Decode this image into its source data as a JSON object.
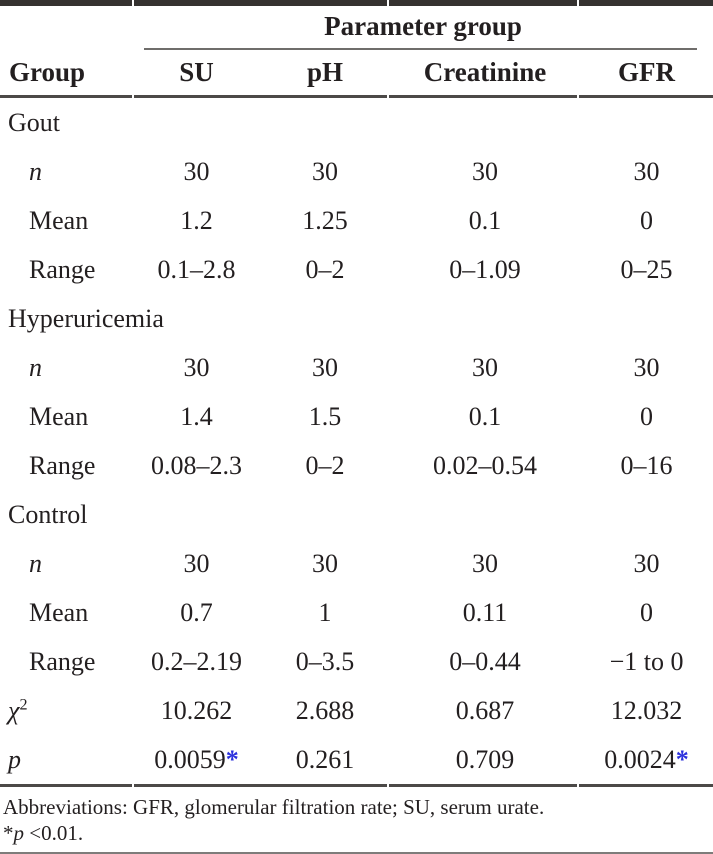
{
  "page": {
    "background": "#ffffff",
    "text_color": "#231f20",
    "accent_blue": "#2b30dd"
  },
  "table": {
    "spanner": "Parameter group",
    "columns": [
      "Group",
      "SU",
      "pH",
      "Creatinine",
      "GFR"
    ],
    "sections": [
      {
        "group": "Gout",
        "rows": [
          {
            "label": "n",
            "italic": true,
            "indent": true,
            "values": [
              "30",
              "30",
              "30",
              "30"
            ]
          },
          {
            "label": "Mean",
            "italic": false,
            "indent": true,
            "values": [
              "1.2",
              "1.25",
              "0.1",
              "0"
            ]
          },
          {
            "label": "Range",
            "italic": false,
            "indent": true,
            "values": [
              "0.1–2.8",
              "0–2",
              "0–1.09",
              "0–25"
            ]
          }
        ]
      },
      {
        "group": "Hyperuricemia",
        "rows": [
          {
            "label": "n",
            "italic": true,
            "indent": true,
            "values": [
              "30",
              "30",
              "30",
              "30"
            ]
          },
          {
            "label": "Mean",
            "italic": false,
            "indent": true,
            "values": [
              "1.4",
              "1.5",
              "0.1",
              "0"
            ]
          },
          {
            "label": "Range",
            "italic": false,
            "indent": true,
            "values": [
              "0.08–2.3",
              "0–2",
              "0.02–0.54",
              "0–16"
            ]
          }
        ]
      },
      {
        "group": "Control",
        "rows": [
          {
            "label": "n",
            "italic": true,
            "indent": true,
            "values": [
              "30",
              "30",
              "30",
              "30"
            ]
          },
          {
            "label": "Mean",
            "italic": false,
            "indent": true,
            "values": [
              "0.7",
              "1",
              "0.11",
              "0"
            ]
          },
          {
            "label": "Range",
            "italic": false,
            "indent": true,
            "values": [
              "0.2–2.19",
              "0–3.5",
              "0–0.44",
              "−1 to 0"
            ]
          }
        ]
      }
    ],
    "stats": [
      {
        "label": "χ",
        "sup": "2",
        "italic": true,
        "indent": false,
        "values": [
          "10.262",
          "2.688",
          "0.687",
          "12.032"
        ]
      },
      {
        "label": "p",
        "italic": true,
        "indent": false,
        "values": [
          "0.0059*",
          "0.261",
          "0.709",
          "0.0024*"
        ]
      }
    ]
  },
  "footnotes": {
    "abbreviations": "Abbreviations: GFR, glomerular filtration rate; SU, serum urate.",
    "significance": {
      "prefix": "*",
      "symbol": "p",
      "rest": " <0.01."
    }
  }
}
